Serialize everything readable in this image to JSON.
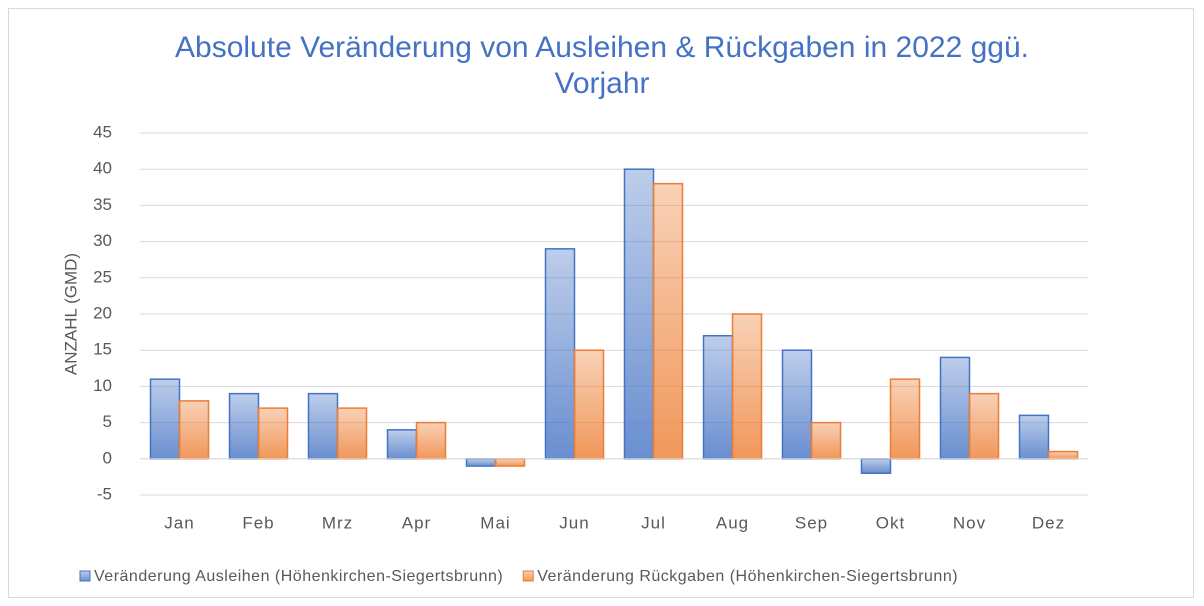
{
  "chart_data": {
    "type": "bar",
    "title": "Absolute Veränderung von Ausleihen & Rückgaben in 2022 ggü. Vorjahr",
    "y_label": "ANZAHL (GMD)",
    "categories": [
      "Jan",
      "Feb",
      "Mrz",
      "Apr",
      "Mai",
      "Jun",
      "Jul",
      "Aug",
      "Sep",
      "Okt",
      "Nov",
      "Dez"
    ],
    "series": [
      {
        "name": "Veränderung Ausleihen (Höhenkirchen-Siegertsbrunn)",
        "color": "#4472c4",
        "values": [
          11,
          9,
          9,
          4,
          -1,
          29,
          40,
          17,
          15,
          -2,
          14,
          6
        ]
      },
      {
        "name": "Veränderung Rückgaben (Höhenkirchen-Siegertsbrunn)",
        "color": "#ed7d31",
        "values": [
          8,
          7,
          7,
          5,
          -1,
          15,
          38,
          20,
          5,
          11,
          9,
          1
        ]
      }
    ],
    "ylim": [
      -5,
      45
    ],
    "yticks": [
      -5,
      0,
      5,
      10,
      15,
      20,
      25,
      30,
      35,
      40,
      45
    ],
    "grid": true,
    "legend": "bottom"
  }
}
